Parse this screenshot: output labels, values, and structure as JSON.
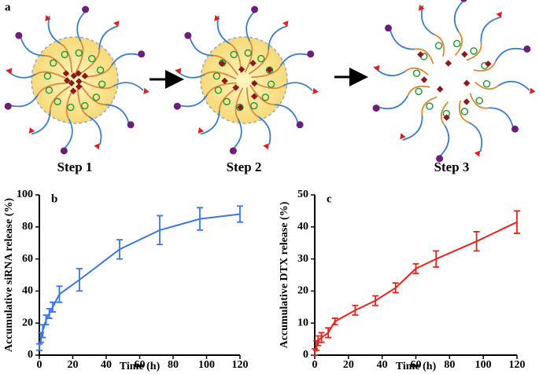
{
  "figure": {
    "panel_label": "a",
    "steps": [
      "Step 1",
      "Step 2",
      "Step 3"
    ]
  },
  "chart_data": [
    {
      "type": "line",
      "panel_label": "b",
      "xlabel": "Time (h)",
      "ylabel": "Accumulative siRNA release (%)",
      "x": [
        0,
        1,
        2,
        4,
        6,
        8,
        12,
        24,
        48,
        72,
        96,
        120
      ],
      "series": [
        {
          "color": "#3b74e6",
          "values": [
            5,
            11,
            15,
            22,
            26,
            30,
            38,
            47,
            66,
            78,
            85,
            88
          ],
          "errors": [
            2,
            3,
            4,
            3,
            3,
            3,
            5,
            7,
            6,
            9,
            7,
            5
          ]
        }
      ],
      "xlim": [
        0,
        120
      ],
      "xticks": [
        0,
        20,
        40,
        60,
        80,
        100,
        120
      ],
      "ylim": [
        0,
        100
      ],
      "yticks": [
        0,
        20,
        40,
        60,
        80,
        100
      ]
    },
    {
      "type": "line",
      "panel_label": "c",
      "xlabel": "Time (h)",
      "ylabel": "Accumulative DTX release (%)",
      "x": [
        0,
        1,
        2,
        4,
        8,
        12,
        24,
        36,
        48,
        60,
        72,
        96,
        120
      ],
      "series": [
        {
          "color": "#e8221c",
          "values": [
            1,
            3,
            4.5,
            5.5,
            7,
            10.5,
            14,
            17,
            21,
            27,
            30,
            35.5,
            41.5
          ],
          "errors": [
            1,
            1.5,
            1.5,
            1.5,
            1.5,
            1,
            1.5,
            1.5,
            1.5,
            1.5,
            2.5,
            3,
            3.5
          ]
        }
      ],
      "xlim": [
        0,
        120
      ],
      "xticks": [
        0,
        20,
        40,
        60,
        80,
        100,
        120
      ],
      "ylim": [
        0,
        50
      ],
      "yticks": [
        0,
        10,
        20,
        30,
        40,
        50
      ]
    }
  ]
}
